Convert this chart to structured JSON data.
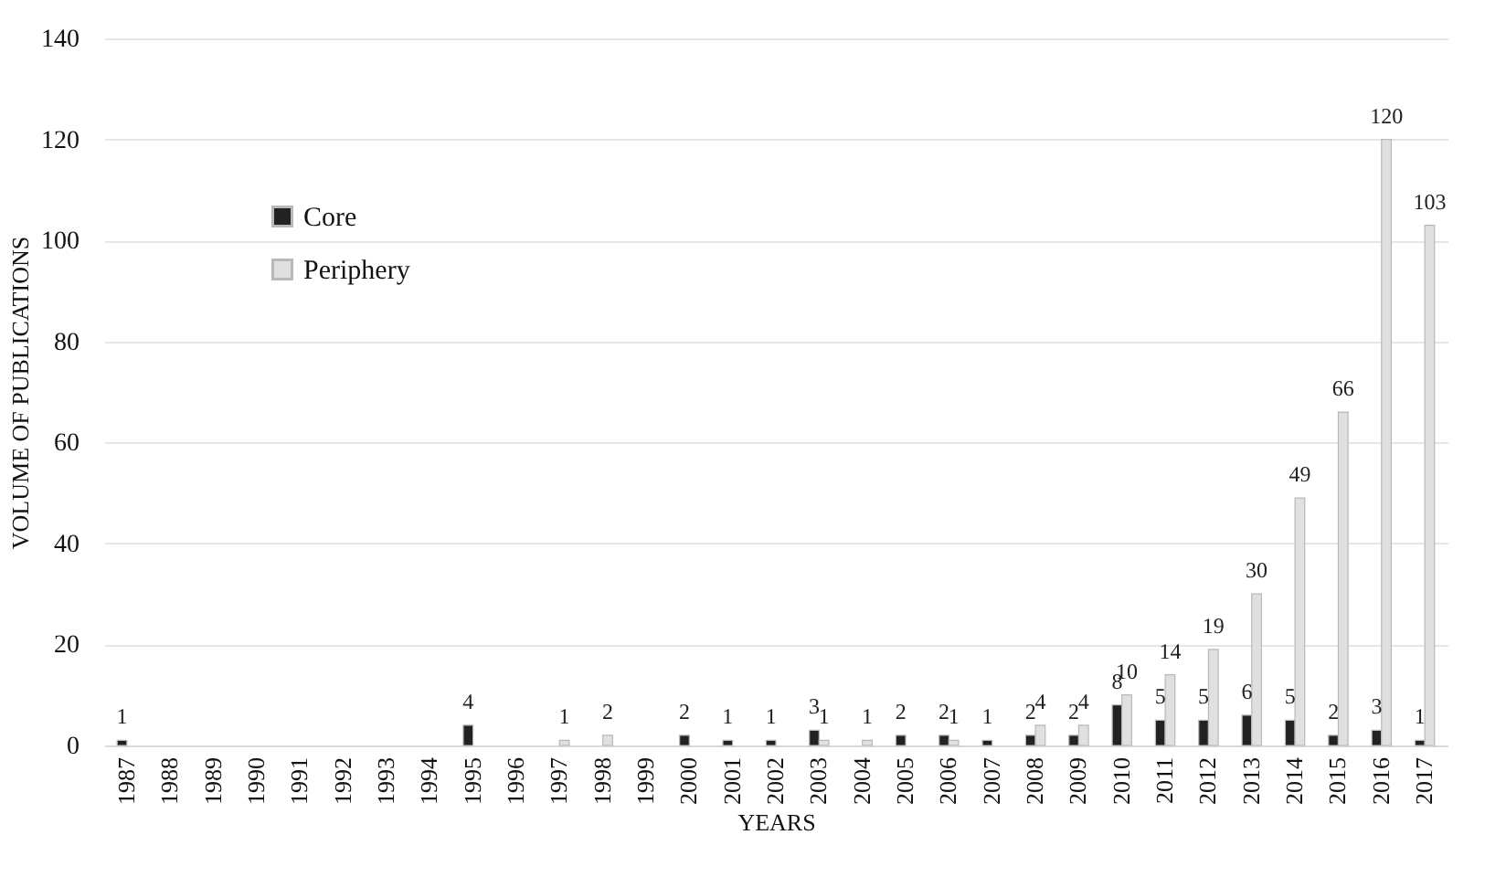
{
  "chart_data": {
    "type": "bar",
    "xlabel": "YEARS",
    "ylabel": "VOLUME OF PUBLICATIONS",
    "categories": [
      "1987",
      "1988",
      "1989",
      "1990",
      "1991",
      "1992",
      "1993",
      "1994",
      "1995",
      "1996",
      "1997",
      "1998",
      "1999",
      "2000",
      "2001",
      "2002",
      "2003",
      "2004",
      "2005",
      "2006",
      "2007",
      "2008",
      "2009",
      "2010",
      "2011",
      "2012",
      "2013",
      "2014",
      "2015",
      "2016",
      "2017"
    ],
    "series": [
      {
        "name": "Core",
        "color": "#222222",
        "values": [
          1,
          null,
          null,
          null,
          null,
          null,
          null,
          null,
          4,
          null,
          null,
          null,
          null,
          2,
          1,
          1,
          3,
          null,
          2,
          2,
          1,
          2,
          2,
          8,
          5,
          5,
          6,
          5,
          2,
          3,
          1
        ]
      },
      {
        "name": "Periphery",
        "color": "#e0e0e0",
        "values": [
          null,
          null,
          null,
          null,
          null,
          null,
          null,
          null,
          null,
          null,
          1,
          2,
          null,
          null,
          null,
          null,
          1,
          1,
          null,
          1,
          null,
          4,
          4,
          10,
          14,
          19,
          30,
          49,
          66,
          120,
          103
        ]
      }
    ],
    "ylim": [
      0,
      140
    ],
    "yticks": [
      0,
      20,
      40,
      60,
      80,
      100,
      120,
      140
    ],
    "grid": "y",
    "legend": "top left",
    "data_labels": true
  }
}
